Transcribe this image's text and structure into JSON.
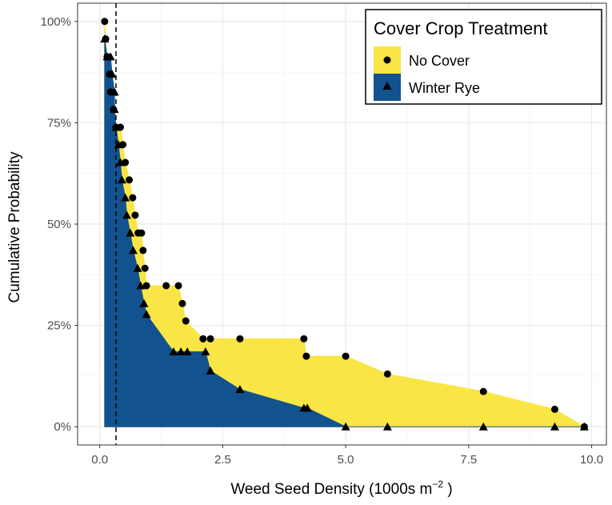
{
  "chart_data": {
    "type": "area",
    "xlabel": "Weed Seed Density (1000s m",
    "xlabel_sup": "−2",
    "xlabel_close": " )",
    "ylabel": "Cumulative Probability",
    "xlim": [
      -0.45,
      10.3
    ],
    "ylim": [
      -0.045,
      1.045
    ],
    "xticks": [
      0.0,
      2.5,
      5.0,
      7.5,
      10.0
    ],
    "xtick_labels": [
      "0.0",
      "2.5",
      "5.0",
      "7.5",
      "10.0"
    ],
    "yticks": [
      0,
      0.25,
      0.5,
      0.75,
      1.0
    ],
    "ytick_labels": [
      "0%",
      "25%",
      "50%",
      "75%",
      "100%"
    ],
    "grid": true,
    "reference_line": {
      "x": 0.33,
      "style": "dashed"
    },
    "legend": {
      "title": "Cover Crop Treatment",
      "position": "top-right",
      "entries": [
        {
          "label": "No Cover",
          "color": "#f9e545",
          "marker": "circle"
        },
        {
          "label": "Winter Rye",
          "color": "#12528e",
          "marker": "triangle"
        }
      ]
    },
    "series": [
      {
        "name": "No Cover",
        "color": "#f9e545",
        "marker": "circle",
        "points": [
          [
            0.1,
            1.0
          ],
          [
            0.12,
            0.957
          ],
          [
            0.15,
            0.913
          ],
          [
            0.2,
            0.87
          ],
          [
            0.22,
            0.826
          ],
          [
            0.28,
            0.783
          ],
          [
            0.33,
            0.739
          ],
          [
            0.42,
            0.739
          ],
          [
            0.47,
            0.696
          ],
          [
            0.52,
            0.652
          ],
          [
            0.6,
            0.609
          ],
          [
            0.67,
            0.565
          ],
          [
            0.72,
            0.522
          ],
          [
            0.78,
            0.478
          ],
          [
            0.85,
            0.478
          ],
          [
            0.88,
            0.435
          ],
          [
            0.92,
            0.391
          ],
          [
            0.95,
            0.348
          ],
          [
            1.35,
            0.348
          ],
          [
            1.6,
            0.348
          ],
          [
            1.68,
            0.304
          ],
          [
            1.75,
            0.261
          ],
          [
            2.1,
            0.217
          ],
          [
            2.25,
            0.217
          ],
          [
            2.85,
            0.217
          ],
          [
            4.15,
            0.217
          ],
          [
            4.2,
            0.174
          ],
          [
            5.0,
            0.174
          ],
          [
            5.85,
            0.13
          ],
          [
            7.8,
            0.087
          ],
          [
            9.25,
            0.043
          ],
          [
            9.85,
            0.0
          ]
        ]
      },
      {
        "name": "Winter Rye",
        "color": "#12528e",
        "marker": "triangle",
        "points": [
          [
            0.1,
            0.957
          ],
          [
            0.15,
            0.913
          ],
          [
            0.22,
            0.913
          ],
          [
            0.25,
            0.87
          ],
          [
            0.3,
            0.826
          ],
          [
            0.3,
            0.783
          ],
          [
            0.33,
            0.739
          ],
          [
            0.38,
            0.696
          ],
          [
            0.42,
            0.652
          ],
          [
            0.45,
            0.609
          ],
          [
            0.52,
            0.565
          ],
          [
            0.55,
            0.522
          ],
          [
            0.62,
            0.478
          ],
          [
            0.68,
            0.435
          ],
          [
            0.77,
            0.391
          ],
          [
            0.83,
            0.348
          ],
          [
            0.9,
            0.304
          ],
          [
            0.95,
            0.277
          ],
          [
            1.5,
            0.185
          ],
          [
            1.65,
            0.185
          ],
          [
            1.78,
            0.185
          ],
          [
            2.15,
            0.185
          ],
          [
            2.25,
            0.138
          ],
          [
            2.85,
            0.092
          ],
          [
            4.15,
            0.046
          ],
          [
            4.22,
            0.046
          ],
          [
            5.0,
            0.0
          ],
          [
            5.85,
            0.0
          ],
          [
            7.8,
            0.0
          ],
          [
            9.25,
            0.0
          ],
          [
            9.85,
            0.0
          ]
        ]
      }
    ]
  }
}
